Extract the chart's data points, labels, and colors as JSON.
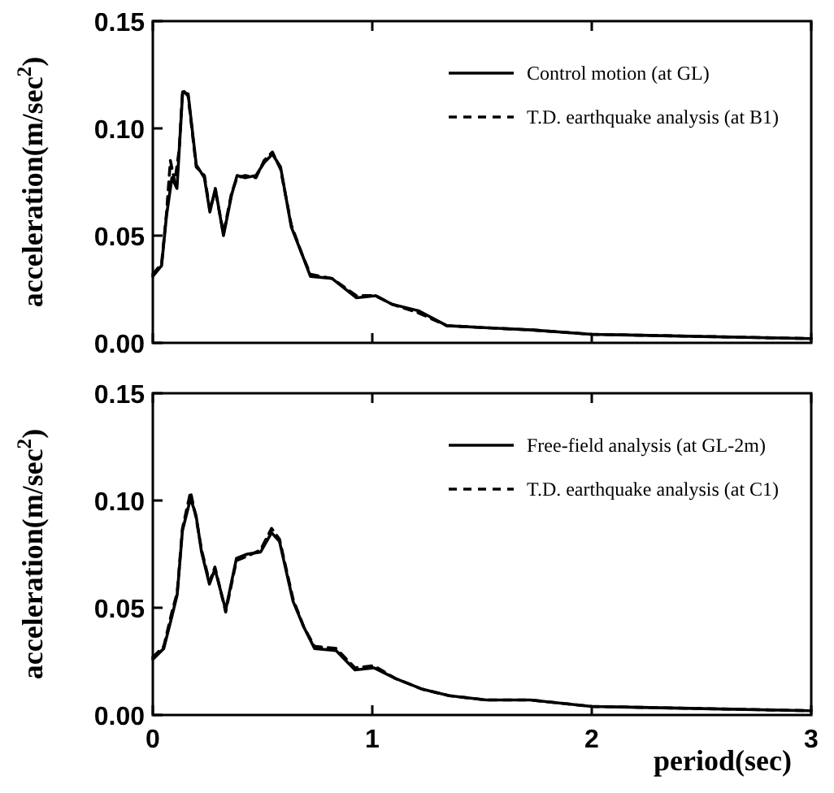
{
  "chart_data": [
    {
      "type": "line",
      "ylabel": "acceleration(m/sec$^{2}$)",
      "xlim": [
        0,
        3
      ],
      "xticks": [
        0,
        1,
        2,
        3
      ],
      "ylim": [
        0,
        0.15
      ],
      "yticks": [
        {
          "value": 0,
          "label": "0.00"
        },
        {
          "value": 0.05,
          "label": "0.05"
        },
        {
          "value": 0.1,
          "label": "0.10"
        },
        {
          "value": 0.15,
          "label": "0.15"
        }
      ],
      "tick_labels": "y",
      "legend": "top right",
      "grid": false,
      "series": [
        {
          "name": "Control motion (at GL)",
          "color": "#000000",
          "line_style": "solid",
          "x": [
            0,
            0.04,
            0.062,
            0.087,
            0.11,
            0.136,
            0.161,
            0.198,
            0.235,
            0.26,
            0.285,
            0.322,
            0.359,
            0.384,
            0.421,
            0.47,
            0.507,
            0.545,
            0.582,
            0.631,
            0.681,
            0.718,
            0.817,
            0.928,
            1.015,
            1.09,
            1.21,
            1.34,
            1.53,
            1.73,
            2,
            2.5,
            3
          ],
          "values": [
            0.031,
            0.036,
            0.059,
            0.077,
            0.072,
            0.117,
            0.116,
            0.083,
            0.077,
            0.061,
            0.072,
            0.05,
            0.069,
            0.078,
            0.077,
            0.078,
            0.084,
            0.088,
            0.082,
            0.054,
            0.041,
            0.031,
            0.03,
            0.021,
            0.022,
            0.018,
            0.015,
            0.008,
            0.007,
            0.006,
            0.004,
            0.003,
            0.002
          ]
        },
        {
          "name": "T.D. earthquake analysis (at B1)",
          "color": "#000000",
          "line_style": "dashed",
          "x": [
            0,
            0.04,
            0.062,
            0.08,
            0.1,
            0.12,
            0.136,
            0.161,
            0.198,
            0.235,
            0.26,
            0.285,
            0.322,
            0.359,
            0.384,
            0.421,
            0.47,
            0.507,
            0.545,
            0.582,
            0.631,
            0.681,
            0.718,
            0.817,
            0.928,
            1.015,
            1.09,
            1.21,
            1.34,
            1.53,
            1.73,
            2,
            2.5,
            3
          ],
          "values": [
            0.032,
            0.037,
            0.06,
            0.085,
            0.075,
            0.09,
            0.118,
            0.115,
            0.082,
            0.078,
            0.062,
            0.071,
            0.051,
            0.07,
            0.077,
            0.078,
            0.077,
            0.085,
            0.089,
            0.081,
            0.055,
            0.041,
            0.032,
            0.03,
            0.022,
            0.022,
            0.018,
            0.014,
            0.008,
            0.007,
            0.006,
            0.004,
            0.003,
            0.002
          ]
        }
      ]
    },
    {
      "type": "line",
      "xlabel": "period(sec)",
      "ylabel": "acceleration(m/sec$^{2}$)",
      "xlim": [
        0,
        3
      ],
      "xticks": [
        0,
        1,
        2,
        3
      ],
      "ylim": [
        0,
        0.15
      ],
      "yticks": [
        {
          "value": 0,
          "label": "0.00"
        },
        {
          "value": 0.05,
          "label": "0.05"
        },
        {
          "value": 0.1,
          "label": "0.10"
        },
        {
          "value": 0.15,
          "label": "0.15"
        }
      ],
      "legend": "top right",
      "grid": false,
      "series": [
        {
          "name": "Free-field analysis (at GL-2m)",
          "color": "#000000",
          "line_style": "solid",
          "x": [
            0,
            0.05,
            0.087,
            0.111,
            0.135,
            0.172,
            0.197,
            0.222,
            0.258,
            0.283,
            0.332,
            0.381,
            0.43,
            0.491,
            0.541,
            0.577,
            0.639,
            0.688,
            0.737,
            0.835,
            0.921,
            1.007,
            1.106,
            1.229,
            1.351,
            1.52,
            1.72,
            2,
            2.5,
            3
          ],
          "values": [
            0.026,
            0.031,
            0.046,
            0.056,
            0.086,
            0.101,
            0.093,
            0.076,
            0.061,
            0.068,
            0.049,
            0.073,
            0.075,
            0.076,
            0.085,
            0.081,
            0.053,
            0.041,
            0.031,
            0.03,
            0.021,
            0.022,
            0.017,
            0.012,
            0.009,
            0.007,
            0.007,
            0.004,
            0.003,
            0.002
          ]
        },
        {
          "name": "T.D. earthquake analysis (at C1)",
          "color": "#000000",
          "line_style": "dashed",
          "x": [
            0,
            0.05,
            0.087,
            0.111,
            0.135,
            0.172,
            0.197,
            0.222,
            0.258,
            0.283,
            0.332,
            0.381,
            0.43,
            0.491,
            0.541,
            0.577,
            0.639,
            0.688,
            0.737,
            0.835,
            0.921,
            1.007,
            1.106,
            1.229,
            1.351,
            1.52,
            1.72,
            2,
            2.5,
            3
          ],
          "values": [
            0.027,
            0.032,
            0.048,
            0.057,
            0.087,
            0.104,
            0.092,
            0.077,
            0.062,
            0.069,
            0.048,
            0.072,
            0.074,
            0.077,
            0.087,
            0.082,
            0.054,
            0.041,
            0.032,
            0.031,
            0.022,
            0.023,
            0.017,
            0.012,
            0.009,
            0.007,
            0.007,
            0.004,
            0.003,
            0.002
          ]
        }
      ]
    }
  ]
}
